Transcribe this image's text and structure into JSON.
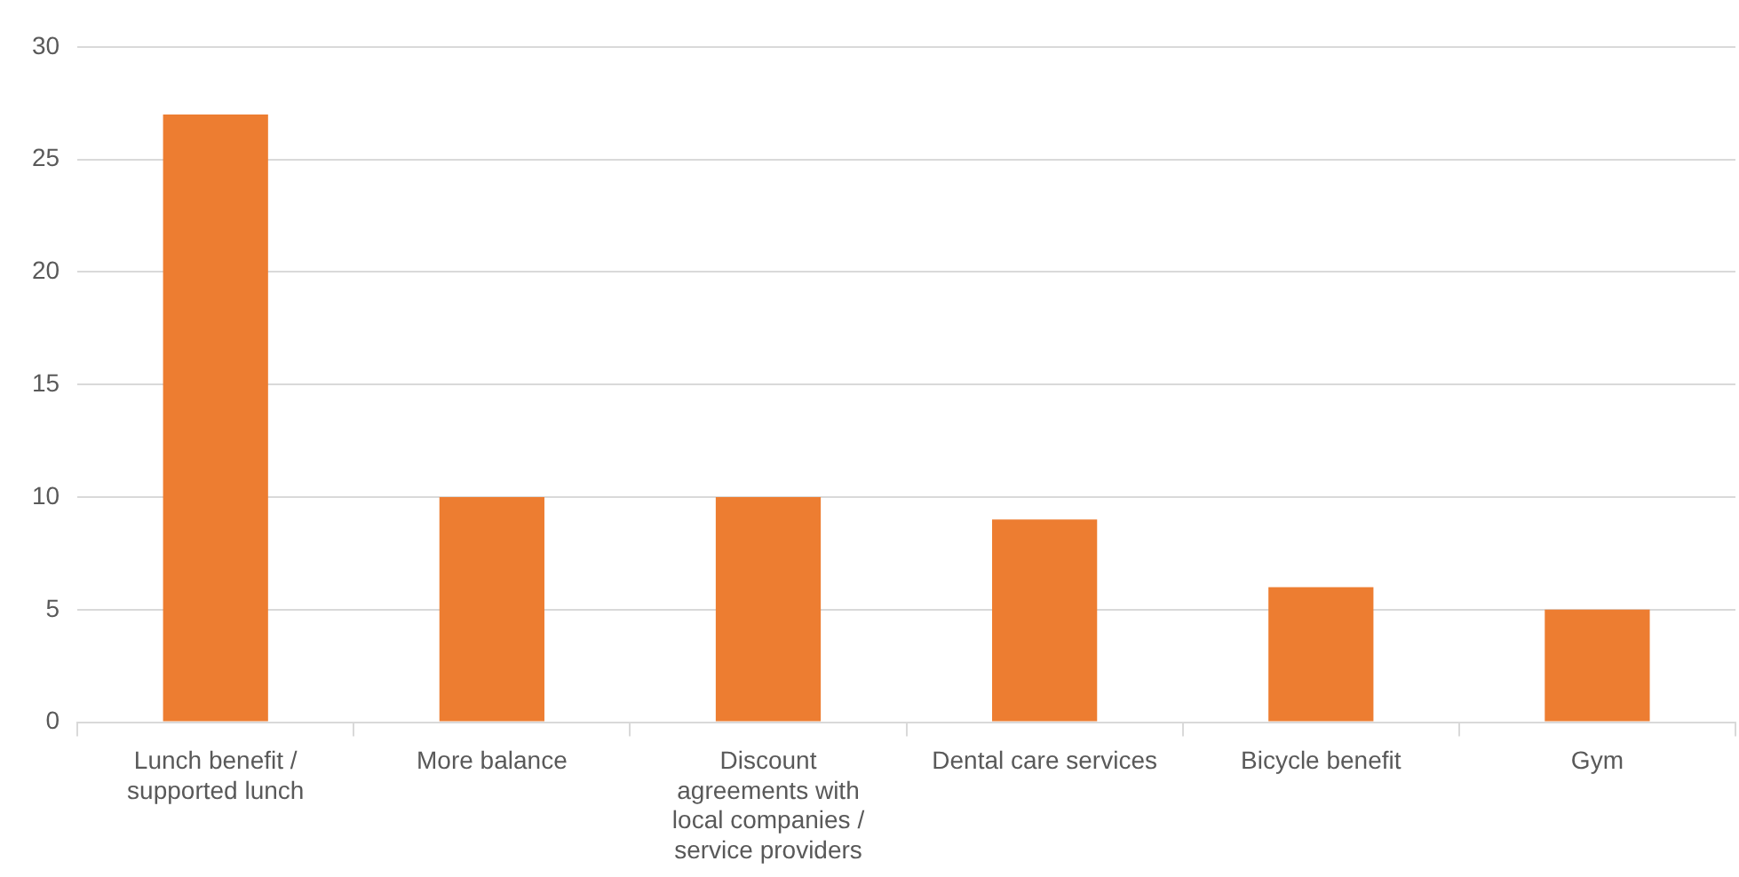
{
  "chart_data": {
    "type": "bar",
    "categories": [
      "Lunch benefit / supported lunch",
      "More balance",
      "Discount agreements with local companies / service providers",
      "Dental care services",
      "Bicycle benefit",
      "Gym"
    ],
    "values": [
      27,
      10,
      10,
      9,
      6,
      5
    ],
    "color": "#ed7d31",
    "ylim": [
      0,
      30
    ],
    "yticks": [
      0,
      5,
      10,
      15,
      20,
      25,
      30
    ],
    "grid": "y",
    "legend": false
  }
}
